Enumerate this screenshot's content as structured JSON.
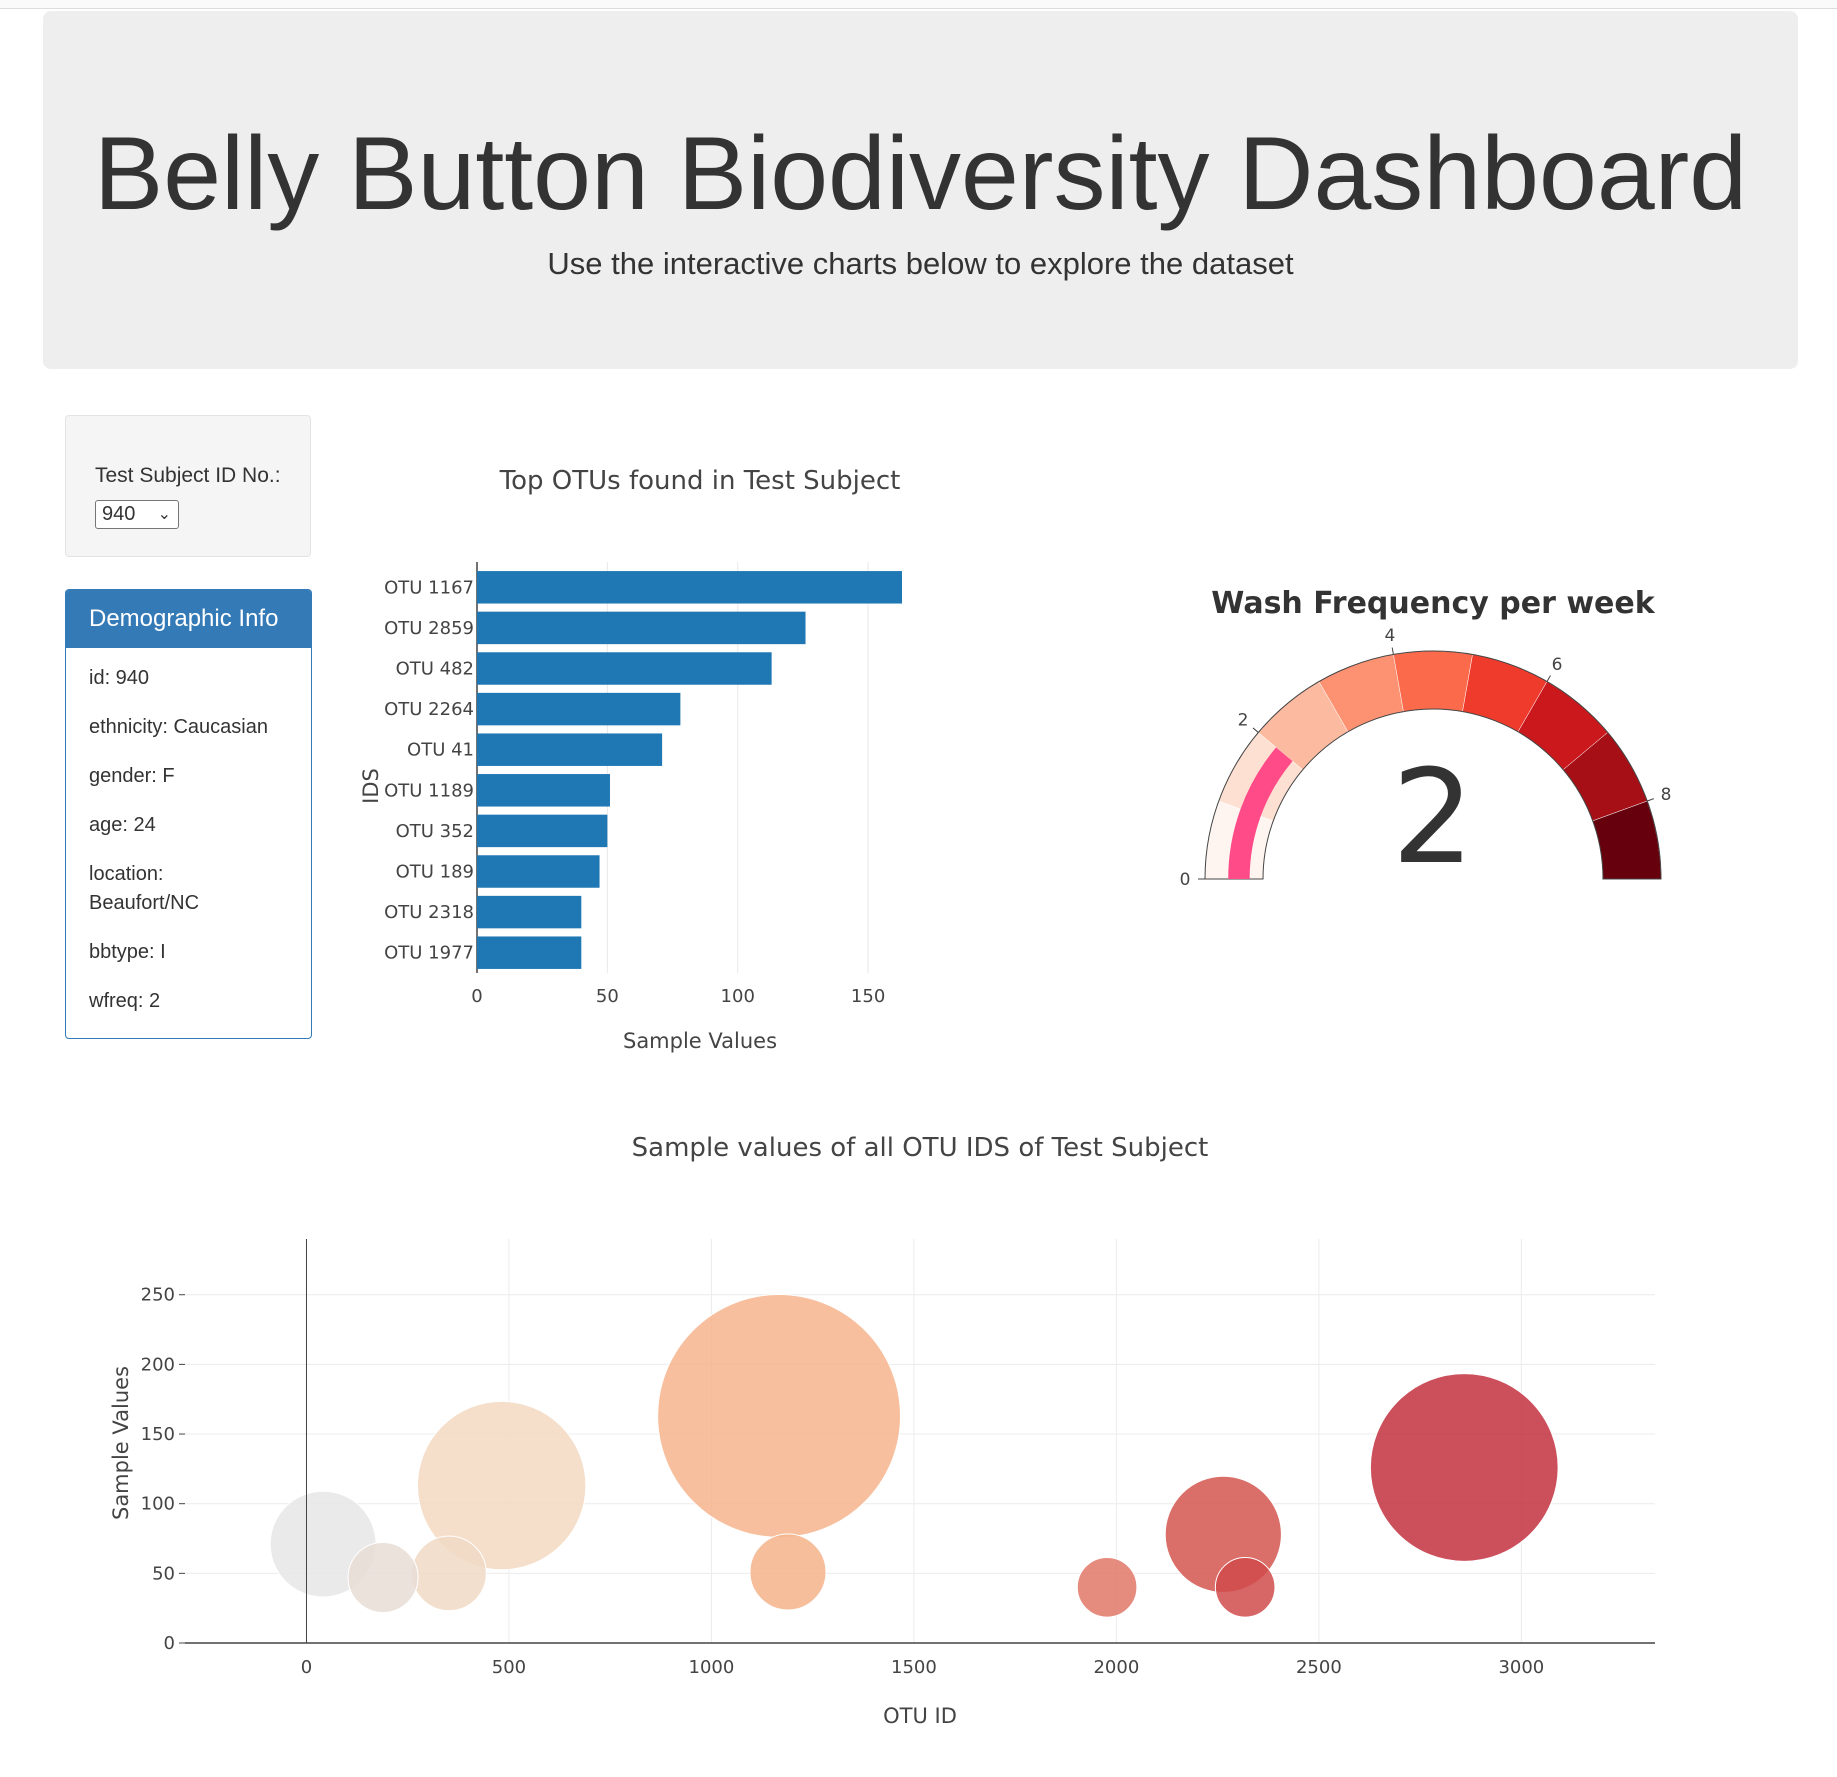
{
  "header": {
    "title": "Belly Button Biodiversity Dashboard",
    "subtitle": "Use the interactive charts below to explore the dataset"
  },
  "selector": {
    "label": "Test Subject ID No.:",
    "value": "940"
  },
  "demographics": {
    "heading": "Demographic Info",
    "items": [
      "id: 940",
      "ethnicity: Caucasian",
      "gender: F",
      "age: 24",
      "location: Beaufort/NC",
      "bbtype: I",
      "wfreq: 2"
    ]
  },
  "chart_data": [
    {
      "type": "bar",
      "orientation": "horizontal",
      "title": "Top OTUs found in Test Subject",
      "xlabel": "Sample Values",
      "ylabel": "IDS",
      "categories": [
        "OTU 1167",
        "OTU 2859",
        "OTU 482",
        "OTU 2264",
        "OTU 41",
        "OTU 1189",
        "OTU 352",
        "OTU 189",
        "OTU 2318",
        "OTU 1977"
      ],
      "values": [
        163,
        126,
        113,
        78,
        71,
        51,
        50,
        47,
        40,
        40
      ],
      "xlim": [
        0,
        163
      ],
      "xticks": [
        0,
        50,
        100,
        150
      ],
      "color": "#1f77b4",
      "grid": true
    },
    {
      "type": "gauge",
      "title": "Wash Frequency per week",
      "value": 2,
      "range": [
        0,
        9
      ],
      "ticks": [
        0,
        2,
        4,
        6,
        8
      ],
      "bar_color": "#ff4b87",
      "steps": [
        {
          "range": [
            0,
            1
          ],
          "color": "#fff5f0"
        },
        {
          "range": [
            1,
            2
          ],
          "color": "#fee0d2"
        },
        {
          "range": [
            2,
            3
          ],
          "color": "#fcbba1"
        },
        {
          "range": [
            3,
            4
          ],
          "color": "#fc9272"
        },
        {
          "range": [
            4,
            5
          ],
          "color": "#fb6a4a"
        },
        {
          "range": [
            5,
            6
          ],
          "color": "#ef3b2c"
        },
        {
          "range": [
            6,
            7
          ],
          "color": "#cb181d"
        },
        {
          "range": [
            7,
            8
          ],
          "color": "#a50f15"
        },
        {
          "range": [
            8,
            9
          ],
          "color": "#67000d"
        }
      ]
    },
    {
      "type": "scatter",
      "mode": "bubble",
      "title": "Sample values of all OTU IDS of Test Subject",
      "xlabel": "OTU ID",
      "ylabel": "Sample Values",
      "xlim": [
        -300,
        3330
      ],
      "ylim": [
        0,
        290
      ],
      "xticks": [
        0,
        500,
        1000,
        1500,
        2000,
        2500,
        3000
      ],
      "yticks": [
        0,
        50,
        100,
        150,
        200,
        250
      ],
      "grid": true,
      "points": [
        {
          "x": 41,
          "y": 71,
          "color": "#e6e6e6"
        },
        {
          "x": 189,
          "y": 47,
          "color": "#e8ddd6"
        },
        {
          "x": 352,
          "y": 50,
          "color": "#f0d9c6"
        },
        {
          "x": 482,
          "y": 113,
          "color": "#f3d9c2"
        },
        {
          "x": 1167,
          "y": 163,
          "color": "#f6b48c"
        },
        {
          "x": 1189,
          "y": 51,
          "color": "#f5b38a"
        },
        {
          "x": 1977,
          "y": 40,
          "color": "#e07868"
        },
        {
          "x": 2264,
          "y": 78,
          "color": "#d4564f"
        },
        {
          "x": 2318,
          "y": 40,
          "color": "#d04b4b"
        },
        {
          "x": 2859,
          "y": 126,
          "color": "#c3313f"
        }
      ]
    }
  ]
}
